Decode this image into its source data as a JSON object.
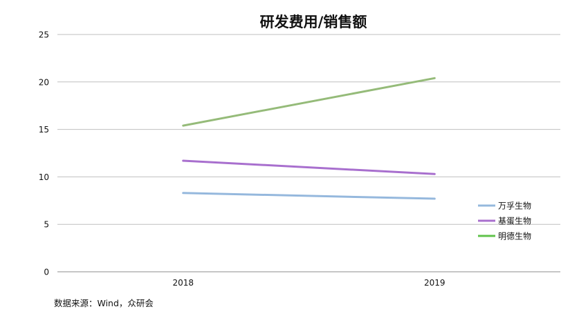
{
  "chart_data": {
    "type": "line",
    "title": "研发费用/销售额",
    "categories": [
      "2018",
      "2019"
    ],
    "yticks": [
      "0",
      "5",
      "10",
      "15",
      "20",
      "25"
    ],
    "ylim": [
      0,
      25
    ],
    "grid": true,
    "legend_position": "right",
    "series": [
      {
        "name": "万孚生物",
        "values": [
          8.3,
          7.7
        ],
        "color": "#95b8dd"
      },
      {
        "name": "基蛋生物",
        "values": [
          11.7,
          10.3
        ],
        "color": "#a86fce"
      },
      {
        "name": "明德生物",
        "values": [
          15.4,
          20.4
        ],
        "color": "#95bb79"
      }
    ],
    "legend": [
      {
        "name": "万孚生物",
        "color": "#95b8dd"
      },
      {
        "name": "基蛋生物",
        "color": "#a86fce"
      },
      {
        "name": "明德生物",
        "color": "#5fc24a"
      }
    ]
  },
  "footer": {
    "source": "数据来源：Wind，众研会"
  }
}
